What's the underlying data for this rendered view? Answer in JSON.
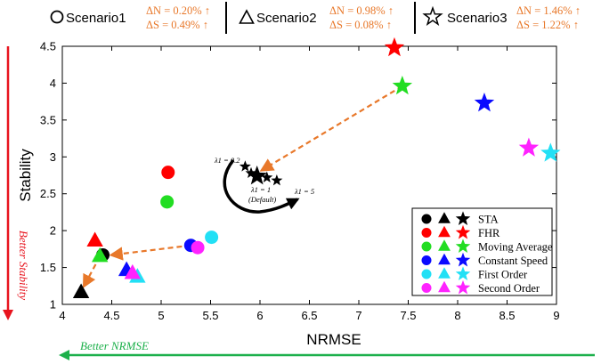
{
  "header": {
    "scenarios": [
      {
        "name": "Scenario1",
        "marker": "circle",
        "dN": "ΔN = 0.20% ↑",
        "dS": "ΔS = 0.49% ↑"
      },
      {
        "name": "Scenario2",
        "marker": "triangle",
        "dN": "ΔN = 0.98% ↑",
        "dS": "ΔS = 0.08% ↑"
      },
      {
        "name": "Scenario3",
        "marker": "star",
        "dN": "ΔN = 1.46% ↑",
        "dS": "ΔS = 1.22% ↑"
      }
    ]
  },
  "better": {
    "stability": "Better Stability",
    "nrmse": "Better NRMSE",
    "stability_color": "#E8141E",
    "nrmse_color": "#1DB04B"
  },
  "annotations": {
    "lambda_02": "λ1 = 0.2",
    "lambda_1": "λ1 = 1",
    "default": "(Default)",
    "lambda_5": "λ1 = 5"
  },
  "chart_data": {
    "type": "scatter",
    "xlabel": "NRMSE",
    "ylabel": "Stability",
    "xlim": [
      4,
      9
    ],
    "ylim": [
      1,
      4.5
    ],
    "xticks": [
      "4",
      "4.5",
      "5",
      "5.5",
      "6",
      "6.5",
      "7",
      "7.5",
      "8",
      "8.5",
      "9"
    ],
    "yticks": [
      "1",
      "1.5",
      "2",
      "2.5",
      "3",
      "3.5",
      "4",
      "4.5"
    ],
    "legend_position": "bottom-right",
    "arrow_color": "#E8782A",
    "series": [
      {
        "name": "STA",
        "color": "#000000",
        "points": [
          {
            "marker": "circle",
            "x": 4.41,
            "y": 1.67
          },
          {
            "marker": "triangle",
            "x": 4.19,
            "y": 1.16
          },
          {
            "marker": "star",
            "x": 5.97,
            "y": 2.74
          }
        ]
      },
      {
        "name": "FHR",
        "color": "#FF0000",
        "points": [
          {
            "marker": "circle",
            "x": 5.07,
            "y": 2.79
          },
          {
            "marker": "triangle",
            "x": 4.33,
            "y": 1.86
          },
          {
            "marker": "star",
            "x": 7.36,
            "y": 4.48
          }
        ]
      },
      {
        "name": "Moving Average",
        "color": "#22DD22",
        "points": [
          {
            "marker": "circle",
            "x": 5.06,
            "y": 2.39
          },
          {
            "marker": "triangle",
            "x": 4.38,
            "y": 1.65
          },
          {
            "marker": "star",
            "x": 7.44,
            "y": 3.96
          }
        ]
      },
      {
        "name": "Constant Speed",
        "color": "#0A0AFF",
        "points": [
          {
            "marker": "circle",
            "x": 5.3,
            "y": 1.8
          },
          {
            "marker": "triangle",
            "x": 4.65,
            "y": 1.46
          },
          {
            "marker": "star",
            "x": 8.27,
            "y": 3.73
          }
        ]
      },
      {
        "name": "First Order",
        "color": "#22E0F5",
        "points": [
          {
            "marker": "circle",
            "x": 5.51,
            "y": 1.91
          },
          {
            "marker": "triangle",
            "x": 4.76,
            "y": 1.37
          },
          {
            "marker": "star",
            "x": 8.94,
            "y": 3.05
          }
        ]
      },
      {
        "name": "Second Order",
        "color": "#FF22FF",
        "points": [
          {
            "marker": "circle",
            "x": 5.37,
            "y": 1.77
          },
          {
            "marker": "triangle",
            "x": 4.71,
            "y": 1.42
          },
          {
            "marker": "star",
            "x": 8.72,
            "y": 3.12
          }
        ]
      }
    ],
    "lambda_sweep": {
      "color": "#000000",
      "points": [
        {
          "x": 5.85,
          "y": 2.87
        },
        {
          "x": 5.91,
          "y": 2.78
        },
        {
          "x": 5.97,
          "y": 2.74
        },
        {
          "x": 6.07,
          "y": 2.72
        },
        {
          "x": 6.17,
          "y": 2.68
        }
      ]
    },
    "arrows": [
      {
        "from": [
          7.44,
          3.96
        ],
        "to": [
          6.02,
          2.82
        ]
      },
      {
        "from": [
          5.3,
          1.8
        ],
        "to": [
          4.5,
          1.67
        ]
      },
      {
        "from": [
          4.38,
          1.65
        ],
        "to": [
          4.22,
          1.25
        ]
      }
    ]
  }
}
